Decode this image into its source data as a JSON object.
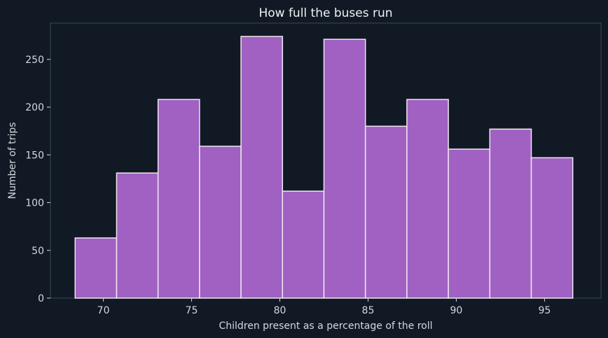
{
  "chart_data": {
    "type": "bar",
    "title": "How full the buses run",
    "xlabel": "Children present as a percentage of the roll",
    "ylabel": "Number of trips",
    "bin_edges": [
      68.4,
      70.75,
      73.1,
      75.45,
      77.8,
      80.15,
      82.5,
      84.85,
      87.2,
      89.55,
      91.9,
      94.25,
      96.6
    ],
    "values": [
      63,
      131,
      208,
      159,
      274,
      112,
      271,
      180,
      208,
      156,
      177,
      147
    ],
    "xlim": [
      67.0,
      98.2
    ],
    "ylim": [
      0,
      288
    ],
    "x_ticks": [
      70,
      75,
      80,
      85,
      90,
      95
    ],
    "y_ticks": [
      0,
      50,
      100,
      150,
      200,
      250
    ],
    "grid": false,
    "colors": {
      "background": "#111a24",
      "plot_background": "#111a24",
      "bar_fill": "#a061c2",
      "bar_edge": "#f1e6f4",
      "axis": "#3a4654",
      "text": "#d2d8de"
    }
  }
}
